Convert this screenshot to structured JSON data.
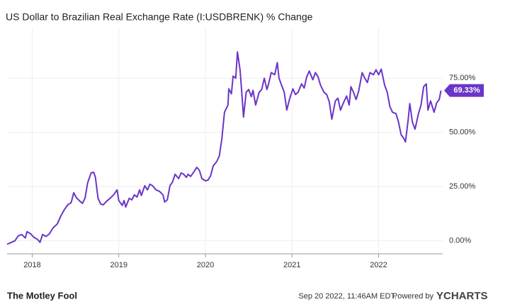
{
  "chart_data": {
    "type": "line",
    "title": "US Dollar to Brazilian Real Exchange Rate (I:USDBRENK) % Change",
    "x": [
      2017.71,
      2017.76,
      2017.8,
      2017.84,
      2017.88,
      2017.92,
      2017.94,
      2017.98,
      2018.02,
      2018.06,
      2018.09,
      2018.12,
      2018.16,
      2018.2,
      2018.24,
      2018.29,
      2018.33,
      2018.37,
      2018.41,
      2018.45,
      2018.48,
      2018.51,
      2018.55,
      2018.58,
      2018.61,
      2018.64,
      2018.68,
      2018.71,
      2018.73,
      2018.76,
      2018.79,
      2018.82,
      2018.86,
      2018.9,
      2018.94,
      2018.98,
      2019.0,
      2019.04,
      2019.06,
      2019.08,
      2019.12,
      2019.15,
      2019.18,
      2019.21,
      2019.24,
      2019.26,
      2019.3,
      2019.33,
      2019.36,
      2019.39,
      2019.43,
      2019.47,
      2019.51,
      2019.53,
      2019.56,
      2019.59,
      2019.62,
      2019.65,
      2019.69,
      2019.72,
      2019.75,
      2019.78,
      2019.8,
      2019.83,
      2019.87,
      2019.9,
      2019.93,
      2019.96,
      2020.0,
      2020.03,
      2020.06,
      2020.09,
      2020.13,
      2020.16,
      2020.19,
      2020.22,
      2020.26,
      2020.27,
      2020.3,
      2020.32,
      2020.35,
      2020.37,
      2020.4,
      2020.42,
      2020.44,
      2020.47,
      2020.5,
      2020.53,
      2020.55,
      2020.58,
      2020.62,
      2020.65,
      2020.68,
      2020.71,
      2020.73,
      2020.76,
      2020.8,
      2020.83,
      2020.85,
      2020.88,
      2020.91,
      2020.94,
      2020.97,
      2021.01,
      2021.04,
      2021.07,
      2021.11,
      2021.14,
      2021.17,
      2021.2,
      2021.24,
      2021.27,
      2021.3,
      2021.33,
      2021.37,
      2021.4,
      2021.43,
      2021.46,
      2021.5,
      2021.53,
      2021.56,
      2021.59,
      2021.63,
      2021.66,
      2021.68,
      2021.71,
      2021.74,
      2021.77,
      2021.81,
      2021.84,
      2021.87,
      2021.9,
      2021.94,
      2021.97,
      2022.0,
      2022.03,
      2022.07,
      2022.1,
      2022.13,
      2022.16,
      2022.2,
      2022.23,
      2022.26,
      2022.29,
      2022.31,
      2022.34,
      2022.36,
      2022.39,
      2022.42,
      2022.46,
      2022.49,
      2022.52,
      2022.55,
      2022.57,
      2022.6,
      2022.64,
      2022.67,
      2022.7,
      2022.72
    ],
    "values": [
      -1.6,
      -0.7,
      0,
      2.3,
      2.9,
      1.3,
      4.2,
      3.3,
      1.6,
      0.7,
      -0.7,
      2.9,
      2,
      3.3,
      5.9,
      7.8,
      11.4,
      14.3,
      16.6,
      17.6,
      22.2,
      19.9,
      18.3,
      17.3,
      19.6,
      26.7,
      31.3,
      31.6,
      29.3,
      19.6,
      17,
      16.6,
      18.3,
      19.6,
      21.2,
      23.5,
      18.6,
      16.3,
      18.6,
      15.6,
      19.6,
      18.9,
      21.2,
      20.2,
      23.5,
      20.9,
      25.4,
      23.5,
      26.1,
      25.4,
      23.5,
      22.8,
      21.2,
      17.9,
      18.9,
      25.4,
      27.1,
      30.7,
      28.7,
      31.3,
      30.7,
      29.3,
      30.7,
      29.7,
      32,
      33.9,
      32.6,
      28.7,
      27.7,
      28,
      30,
      34.6,
      36.5,
      39.1,
      47,
      59.3,
      62.6,
      70.1,
      67.8,
      76,
      75,
      87.1,
      78.9,
      68.5,
      57.1,
      68.5,
      69.8,
      66.5,
      69.4,
      62.6,
      68.5,
      69.8,
      75,
      69.8,
      72.4,
      77.6,
      76.6,
      82.2,
      75,
      71.7,
      68.5,
      60.3,
      65.2,
      70.1,
      67.5,
      68.5,
      72.4,
      70.5,
      75.7,
      78.3,
      74.3,
      77.6,
      75.7,
      71.7,
      68.5,
      67.5,
      64.2,
      56.1,
      64.5,
      65.8,
      60.3,
      63.3,
      66.8,
      62.6,
      71.1,
      68.5,
      65.2,
      69.1,
      77.6,
      75,
      73,
      77.6,
      76.6,
      78.9,
      76.6,
      79.2,
      71.7,
      68.5,
      62,
      59.3,
      58.7,
      54.8,
      48.9,
      47.3,
      45.6,
      55.4,
      63.3,
      54.8,
      51.5,
      58.7,
      62.6,
      71.1,
      72.4,
      60.3,
      64.5,
      59.3,
      63.6,
      65.2,
      69.33
    ],
    "color": "#6a35c8",
    "xlim": [
      2017.71,
      2022.74
    ],
    "xticks": [
      2018,
      2019,
      2020,
      2021,
      2022
    ],
    "ylim": [
      -6,
      98
    ],
    "yticks": [
      {
        "value": 0,
        "label": "0.00%"
      },
      {
        "value": 25,
        "label": "25.00%"
      },
      {
        "value": 50,
        "label": "50.00%"
      },
      {
        "value": 75,
        "label": "75.00%"
      }
    ],
    "grid": true,
    "end_label": {
      "value": 69.33,
      "label": "69.33%"
    }
  },
  "footer": {
    "logo": "The Motley Fool",
    "timestamp": "Sep 20 2022, 11:46AM EDT.",
    "powered_by": "Powered by",
    "brand": "YCHARTS"
  }
}
